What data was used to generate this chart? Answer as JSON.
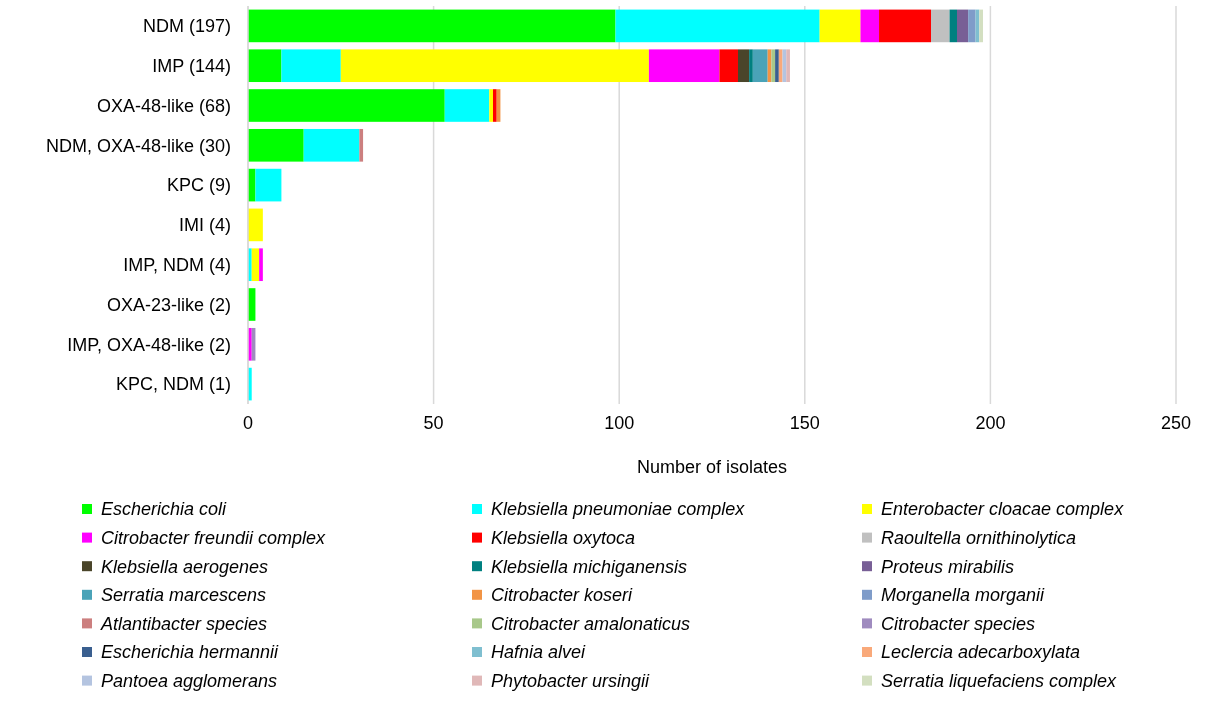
{
  "chart_data": {
    "type": "bar",
    "orientation": "horizontal",
    "stacked": true,
    "xlabel": "Number of isolates",
    "categories": [
      "NDM (197)",
      "IMP (144)",
      "OXA-48-like (68)",
      "NDM, OXA-48-like (30)",
      "KPC (9)",
      "IMI (4)",
      "IMP, NDM (4)",
      "OXA-23-like (2)",
      "IMP, OXA-48-like (2)",
      "KPC, NDM (1)"
    ],
    "xlim": [
      0,
      250
    ],
    "xticks": [
      0,
      50,
      100,
      150,
      200,
      250
    ],
    "grid": "x",
    "legend": "bottom",
    "series": [
      {
        "name": "Escherichia coli",
        "color": "#00ff00",
        "values": [
          99,
          9,
          53,
          15,
          2,
          null,
          null,
          2,
          null,
          null
        ]
      },
      {
        "name": "Klebsiella pneumoniae complex",
        "color": "#00ffff",
        "values": [
          55,
          16,
          12,
          15,
          7,
          null,
          1,
          null,
          null,
          1
        ]
      },
      {
        "name": "Enterobacter cloacae complex",
        "color": "#ffff00",
        "values": [
          11,
          83,
          1,
          null,
          null,
          4,
          2,
          null,
          null,
          null
        ]
      },
      {
        "name": "Citrobacter freundii complex",
        "color": "#ff00ff",
        "values": [
          5,
          19,
          null,
          null,
          null,
          null,
          1,
          null,
          1,
          null
        ]
      },
      {
        "name": "Klebsiella oxytoca",
        "color": "#ff0000",
        "values": [
          14,
          5,
          1,
          null,
          null,
          null,
          null,
          null,
          null,
          null
        ]
      },
      {
        "name": "Raoultella ornithinolytica",
        "color": "#c0c0c0",
        "values": [
          5,
          null,
          null,
          null,
          null,
          null,
          null,
          null,
          null,
          null
        ]
      },
      {
        "name": "Klebsiella aerogenes",
        "color": "#4a452a",
        "values": [
          null,
          3,
          null,
          null,
          null,
          null,
          null,
          null,
          null,
          null
        ]
      },
      {
        "name": "Klebsiella michiganensis",
        "color": "#008080",
        "values": [
          2,
          1,
          null,
          null,
          null,
          null,
          null,
          null,
          null,
          null
        ]
      },
      {
        "name": "Proteus mirabilis",
        "color": "#785f96",
        "values": [
          3,
          null,
          null,
          null,
          null,
          null,
          null,
          null,
          null,
          null
        ]
      },
      {
        "name": "Serratia marcescens",
        "color": "#4aa3b8",
        "values": [
          null,
          4,
          null,
          null,
          null,
          null,
          null,
          null,
          null,
          null
        ]
      },
      {
        "name": "Citrobacter koseri",
        "color": "#f29445",
        "values": [
          null,
          1,
          1,
          null,
          null,
          null,
          null,
          null,
          null,
          null
        ]
      },
      {
        "name": "Morganella morganii",
        "color": "#7f9cc9",
        "values": [
          2,
          null,
          null,
          null,
          null,
          null,
          null,
          null,
          null,
          null
        ]
      },
      {
        "name": "Atlantibacter species",
        "color": "#cc7f7f",
        "values": [
          null,
          null,
          null,
          1,
          null,
          null,
          null,
          null,
          null,
          null
        ]
      },
      {
        "name": "Citrobacter amalonaticus",
        "color": "#a8c88a",
        "values": [
          null,
          1,
          null,
          null,
          null,
          null,
          null,
          null,
          null,
          null
        ]
      },
      {
        "name": "Citrobacter species",
        "color": "#9f8bbf",
        "values": [
          null,
          null,
          null,
          null,
          null,
          null,
          null,
          null,
          1,
          null
        ]
      },
      {
        "name": "Escherichia hermannii",
        "color": "#3a5f8f",
        "values": [
          null,
          1,
          null,
          null,
          null,
          null,
          null,
          null,
          null,
          null
        ]
      },
      {
        "name": "Hafnia alvei",
        "color": "#7fbfd0",
        "values": [
          1,
          null,
          null,
          null,
          null,
          null,
          null,
          null,
          null,
          null
        ]
      },
      {
        "name": "Leclercia adecarboxylata",
        "color": "#f9a97a",
        "values": [
          null,
          1,
          null,
          null,
          null,
          null,
          null,
          null,
          null,
          null
        ]
      },
      {
        "name": "Pantoea agglomerans",
        "color": "#b4c4e0",
        "values": [
          null,
          1,
          null,
          null,
          null,
          null,
          null,
          null,
          null,
          null
        ]
      },
      {
        "name": "Phytobacter ursingii",
        "color": "#e0b8b8",
        "values": [
          null,
          1,
          null,
          null,
          null,
          null,
          null,
          null,
          null,
          null
        ]
      },
      {
        "name": "Serratia liquefaciens complex",
        "color": "#d3dfc0",
        "values": [
          1,
          null,
          null,
          null,
          null,
          null,
          null,
          null,
          null,
          null
        ]
      }
    ]
  }
}
